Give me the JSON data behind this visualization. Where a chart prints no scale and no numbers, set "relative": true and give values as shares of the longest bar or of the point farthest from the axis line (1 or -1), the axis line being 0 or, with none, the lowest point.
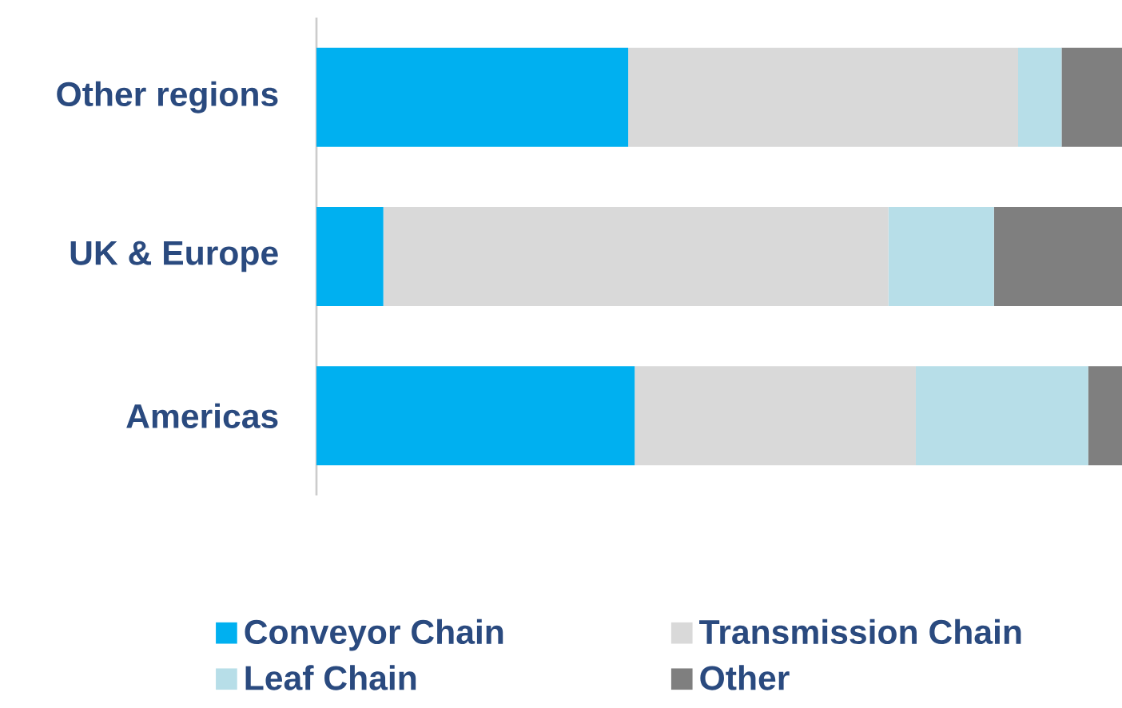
{
  "chart_data": {
    "type": "bar",
    "orientation": "horizontal",
    "stacked": true,
    "relative": true,
    "legend": "bottom",
    "categories": [
      "Other regions",
      "UK & Europe",
      "Americas"
    ],
    "series": [
      {
        "name": "Conveyor Chain",
        "color": "#00b0f0",
        "values": [
          0.387,
          0.083,
          0.395
        ]
      },
      {
        "name": "Transmission Chain",
        "color": "#d9d9d9",
        "values": [
          0.484,
          0.627,
          0.349
        ]
      },
      {
        "name": "Leaf Chain",
        "color": "#b7dee8",
        "values": [
          0.054,
          0.131,
          0.214
        ]
      },
      {
        "name": "Other",
        "color": "#7f7f7f",
        "values": [
          0.075,
          0.159,
          0.042
        ]
      }
    ]
  }
}
